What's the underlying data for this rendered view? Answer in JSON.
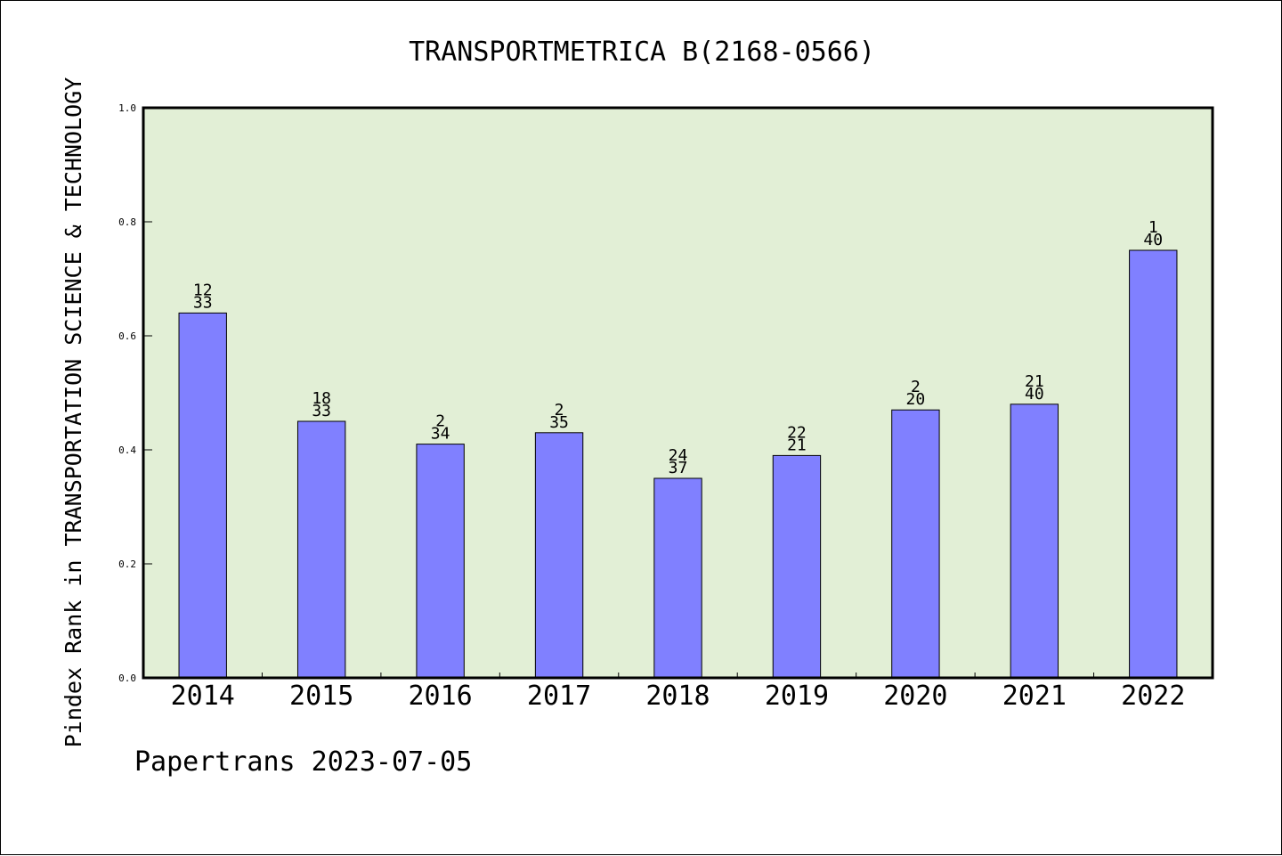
{
  "chart_data": {
    "type": "bar",
    "title": "TRANSPORTMETRICA B(2168-0566)",
    "xlabel": "",
    "ylabel": "Pindex Rank in TRANSPORTATION SCIENCE & TECHNOLOGY",
    "footer": "Papertrans 2023-07-05",
    "categories": [
      "2014",
      "2015",
      "2016",
      "2017",
      "2018",
      "2019",
      "2020",
      "2021",
      "2022"
    ],
    "values": [
      0.64,
      0.45,
      0.41,
      0.43,
      0.35,
      0.39,
      0.47,
      0.48,
      0.75
    ],
    "label_top": [
      "12",
      "18",
      "2",
      "2",
      "24",
      "22",
      "2",
      "21",
      "1"
    ],
    "label_bottom": [
      "33",
      "33",
      "34",
      "35",
      "37",
      "21",
      "20",
      "40",
      "40"
    ],
    "ylim": [
      0,
      1.0
    ],
    "yticks": [
      "0.0",
      "0.2",
      "0.4",
      "0.6",
      "0.8",
      "1.0"
    ],
    "grid": false,
    "colors": {
      "plot_background": "#e2efd6",
      "bar_fill": "#8080ff",
      "bar_stroke": "#000000",
      "axis": "#000000"
    }
  }
}
